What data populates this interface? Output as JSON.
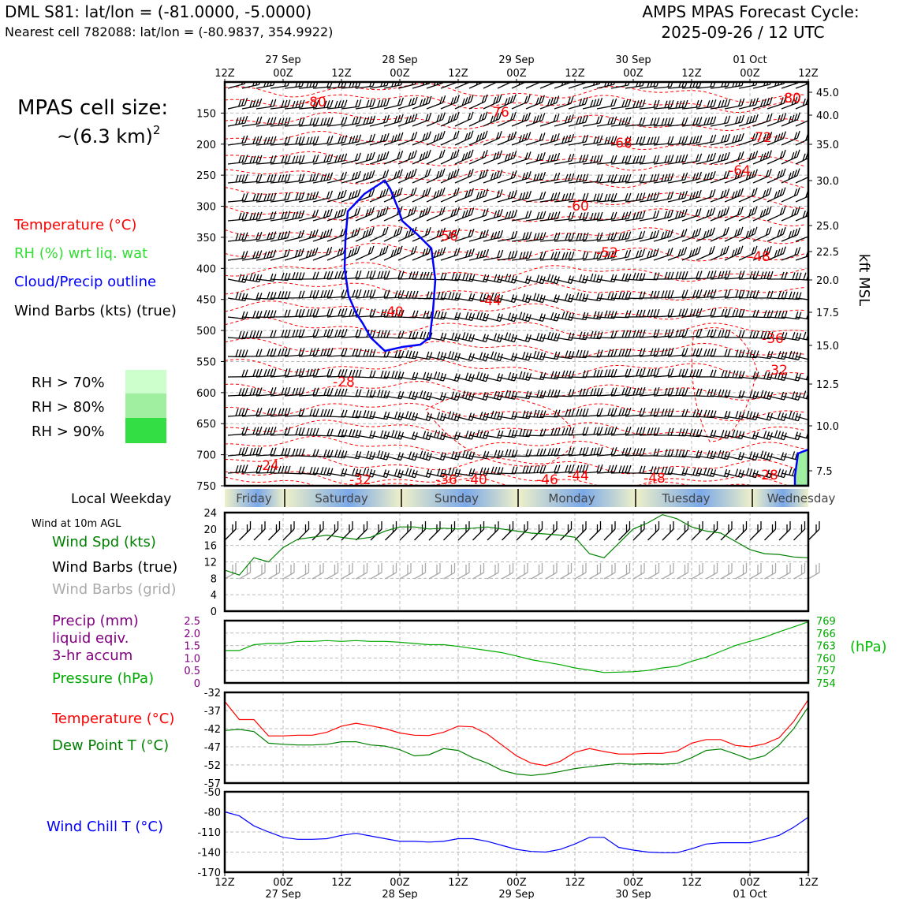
{
  "header": {
    "station": "DML S81: lat/lon = (-81.0000, -5.0000)",
    "nearest": "Nearest cell 782088: lat/lon = (-80.9837, 354.9922)",
    "cycle_title": "AMPS MPAS Forecast Cycle:",
    "cycle_date": "2025-09-26 / 12 UTC"
  },
  "cell_size": {
    "line1": "MPAS cell size:",
    "line2": "~(6.3 km)",
    "exponent": "2"
  },
  "legend": {
    "temperature": "Temperature (°C)",
    "rh": "RH (%) wrt liq. wat",
    "cloud": "Cloud/Precip outline",
    "barbs": "Wind Barbs (kts) (true)",
    "rh70": "RH > 70%",
    "rh80": "RH > 80%",
    "rh90": "RH > 90%",
    "colors": {
      "temperature": "#ff0000",
      "rh": "#33dd33",
      "cloud": "#0000ff",
      "barbs": "#000000",
      "rh70": "#ccffcc",
      "rh80": "#a0eea0",
      "rh90": "#33dd44"
    }
  },
  "time_axis": {
    "top_labels": [
      "12Z",
      "00Z",
      "12Z",
      "00Z",
      "12Z",
      "00Z",
      "12Z",
      "00Z",
      "12Z",
      "00Z",
      "12Z"
    ],
    "dates": [
      "27 Sep",
      "28 Sep",
      "29 Sep",
      "30 Sep",
      "01 Oct"
    ],
    "day_label": "Local Weekday",
    "weekdays": [
      "Friday",
      "Saturday",
      "Sunday",
      "Monday",
      "Tuesday",
      "Wednesday"
    ]
  },
  "chart_data": [
    {
      "type": "line",
      "name": "upper-air time-height section",
      "x_hours": [
        0,
        120
      ],
      "y_pressure_hpa": [
        100,
        750
      ],
      "y_ticks_left": [
        "150",
        "200",
        "250",
        "300",
        "350",
        "400",
        "450",
        "500",
        "550",
        "600",
        "650",
        "700",
        "750"
      ],
      "y_ticks_right": [
        "45.0",
        "40.0",
        "35.0",
        "30.0",
        "25.0",
        "22.5",
        "20.0",
        "17.5",
        "15.0",
        "12.5",
        "10.0",
        "7.5"
      ],
      "y_label_right": "kft MSL",
      "contour_labels": [
        "-80",
        "-76",
        "-68",
        "-72",
        "-64",
        "-60",
        "-56",
        "-52",
        "-48",
        "-44",
        "-40",
        "-36",
        "-32",
        "-28",
        "-24",
        "-32",
        "-36",
        "-40",
        "-46",
        "-44",
        "-48",
        "-28"
      ],
      "cloud_outline": "closed blue contour between ~270 and ~540 hPa near 28 Sep 00Z"
    },
    {
      "type": "line",
      "name": "Wind at 10m AGL",
      "title": "Wind at 10m AGL",
      "series_label": "Wind Spd (kts)",
      "barb_true_label": "Wind Barbs (true)",
      "barb_grid_label": "Wind Barbs (grid)",
      "ylim": [
        0,
        24
      ],
      "y_ticks": [
        "0",
        "4",
        "8",
        "12",
        "16",
        "20",
        "24"
      ],
      "x_hours": [
        0,
        3,
        6,
        9,
        12,
        15,
        18,
        21,
        24,
        27,
        30,
        33,
        36,
        39,
        42,
        45,
        48,
        51,
        54,
        57,
        60,
        63,
        66,
        69,
        72,
        75,
        78,
        81,
        84,
        87,
        90,
        93,
        96,
        99,
        102,
        105,
        108,
        111,
        114,
        117,
        120
      ],
      "values": [
        10,
        8.8,
        13,
        12,
        15.5,
        17.5,
        18,
        18.5,
        18,
        17.5,
        18,
        19.5,
        20.5,
        20.5,
        20,
        20.2,
        20,
        20.2,
        20.5,
        20,
        19.5,
        19,
        18.8,
        18.5,
        18,
        14,
        13,
        16.5,
        20,
        21.5,
        23.5,
        22.5,
        20.5,
        19.5,
        19,
        17,
        15,
        14,
        13.8,
        13.2,
        13
      ]
    },
    {
      "type": "line",
      "name": "Precip / Pressure",
      "precip_label": [
        "Precip (mm)",
        "liquid eqiv.",
        "3-hr accum"
      ],
      "pressure_label": "Pressure (hPa)",
      "right_unit": "(hPa)",
      "y_ticks_left": [
        "0",
        "0.5",
        "1.0",
        "1.5",
        "2.0",
        "2.5"
      ],
      "y_ticks_right": [
        "754",
        "757",
        "760",
        "763",
        "766",
        "769"
      ],
      "ylim": [
        754,
        769
      ],
      "x_hours": [
        0,
        3,
        6,
        9,
        12,
        15,
        18,
        21,
        24,
        27,
        30,
        33,
        36,
        39,
        42,
        45,
        48,
        51,
        54,
        57,
        60,
        63,
        66,
        69,
        72,
        75,
        78,
        81,
        84,
        87,
        90,
        93,
        96,
        99,
        102,
        105,
        108,
        111,
        114,
        117,
        120
      ],
      "values": [
        761.8,
        761.8,
        763.2,
        763.5,
        763.5,
        764,
        764,
        764.2,
        764,
        764.2,
        764,
        764,
        763.8,
        763.5,
        763.2,
        763.2,
        762.8,
        762.3,
        761.8,
        761.3,
        760.5,
        759.6,
        759,
        758.4,
        757.6,
        757.1,
        756.5,
        756.6,
        756.7,
        757,
        757.6,
        758,
        759.2,
        760.2,
        761.6,
        763,
        764,
        765,
        766.3,
        767.5,
        768.7
      ]
    },
    {
      "type": "line",
      "name": "Temperature / Dew Point",
      "temperature_label": "Temperature (°C)",
      "dewpoint_label": "Dew Point T (°C)",
      "ylim": [
        -57,
        -32
      ],
      "y_ticks": [
        "-32",
        "-37",
        "-42",
        "-47",
        "-52",
        "-57"
      ],
      "x_hours": [
        0,
        3,
        6,
        9,
        12,
        15,
        18,
        21,
        24,
        27,
        30,
        33,
        36,
        39,
        42,
        45,
        48,
        51,
        54,
        57,
        60,
        63,
        66,
        69,
        72,
        75,
        78,
        81,
        84,
        87,
        90,
        93,
        96,
        99,
        102,
        105,
        108,
        111,
        114,
        117,
        120
      ],
      "series": [
        {
          "name": "Temperature",
          "color": "#ff0000",
          "values": [
            -34.5,
            -39.5,
            -39.5,
            -44,
            -44,
            -43.8,
            -43.8,
            -43,
            -41.3,
            -40.5,
            -41.2,
            -42,
            -43.2,
            -43.8,
            -43.9,
            -43,
            -41.3,
            -41.5,
            -43.5,
            -46.5,
            -49.5,
            -51.5,
            -52.2,
            -51,
            -48.5,
            -47.5,
            -48.3,
            -49,
            -49,
            -48.8,
            -48.8,
            -48.2,
            -46,
            -45,
            -45,
            -46.6,
            -47,
            -46.2,
            -44.5,
            -40,
            -34
          ]
        },
        {
          "name": "Dew Point",
          "color": "#008000",
          "values": [
            -42.5,
            -42.2,
            -42.8,
            -46,
            -46.3,
            -46.5,
            -46.5,
            -46.3,
            -45.6,
            -45.6,
            -46.5,
            -46.8,
            -47.8,
            -49.5,
            -49.2,
            -47.5,
            -48,
            -50,
            -51.5,
            -53.5,
            -54.5,
            -54.9,
            -54.5,
            -53.8,
            -53,
            -52.5,
            -52,
            -51.6,
            -51.8,
            -51.7,
            -51.8,
            -51.6,
            -50,
            -48,
            -47.6,
            -49,
            -50.5,
            -49.5,
            -46.5,
            -42,
            -36
          ]
        }
      ]
    },
    {
      "type": "line",
      "name": "Wind Chill",
      "series_label": "Wind Chill T (°C)",
      "ylim": [
        -170,
        -50
      ],
      "y_ticks": [
        "-50",
        "-80",
        "-110",
        "-140",
        "-170"
      ],
      "x_ticks": [
        "12Z",
        "00Z",
        "12Z",
        "00Z",
        "12Z",
        "00Z",
        "12Z",
        "00Z",
        "12Z",
        "00Z",
        "12Z"
      ],
      "x_dates": [
        "27 Sep",
        "28 Sep",
        "29 Sep",
        "30 Sep",
        "01 Oct"
      ],
      "x_hours": [
        0,
        3,
        6,
        9,
        12,
        15,
        18,
        21,
        24,
        27,
        30,
        33,
        36,
        39,
        42,
        45,
        48,
        51,
        54,
        57,
        60,
        63,
        66,
        69,
        72,
        75,
        78,
        81,
        84,
        87,
        90,
        93,
        96,
        99,
        102,
        105,
        108,
        111,
        114,
        117,
        120
      ],
      "values": [
        -80,
        -86,
        -101,
        -110,
        -118,
        -121,
        -121,
        -120,
        -115,
        -112,
        -116,
        -120,
        -124,
        -124,
        -125,
        -124,
        -120,
        -120,
        -124,
        -130,
        -136,
        -139,
        -140,
        -136,
        -128,
        -118,
        -118,
        -133,
        -137,
        -140,
        -141,
        -141,
        -135,
        -128,
        -126,
        -126,
        -126,
        -121,
        -115,
        -103,
        -88
      ]
    }
  ]
}
